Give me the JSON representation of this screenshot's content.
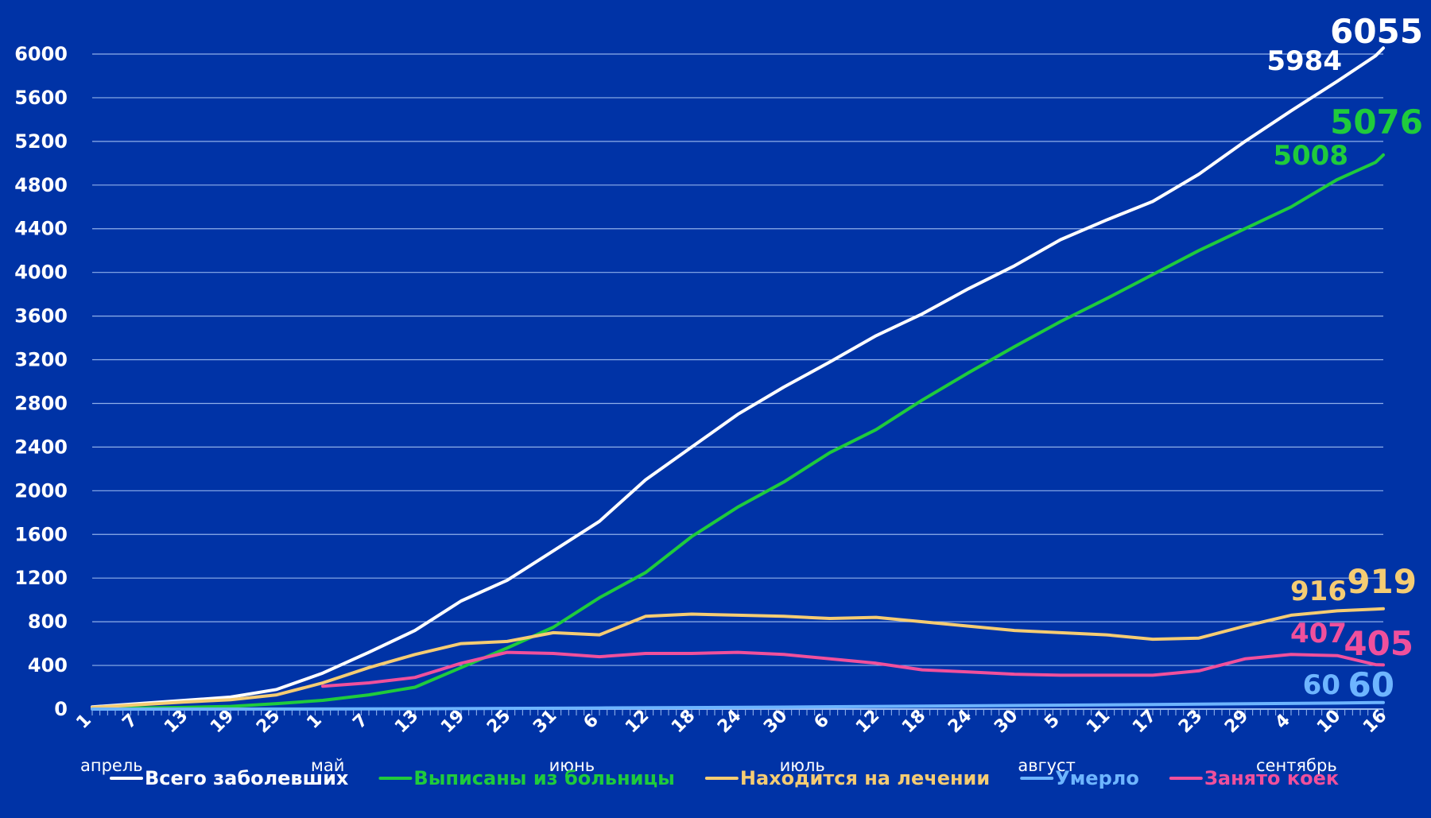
{
  "chart_data": {
    "type": "line",
    "title": "",
    "xlabel": "",
    "ylabel": "",
    "ylim": [
      0,
      6000
    ],
    "yticks": [
      0,
      400,
      800,
      1200,
      1600,
      2000,
      2400,
      2800,
      3200,
      3600,
      4000,
      4400,
      4800,
      5200,
      5600,
      6000
    ],
    "grid": true,
    "legend_position": "bottom",
    "x_range": [
      "2020-04-01",
      "2020-09-16"
    ],
    "x_tick_labels": [
      {
        "date": "2020-04-01",
        "label": "1"
      },
      {
        "date": "2020-04-07",
        "label": "7"
      },
      {
        "date": "2020-04-13",
        "label": "13"
      },
      {
        "date": "2020-04-19",
        "label": "19"
      },
      {
        "date": "2020-04-25",
        "label": "25"
      },
      {
        "date": "2020-05-01",
        "label": "1"
      },
      {
        "date": "2020-05-07",
        "label": "7"
      },
      {
        "date": "2020-05-13",
        "label": "13"
      },
      {
        "date": "2020-05-19",
        "label": "19"
      },
      {
        "date": "2020-05-25",
        "label": "25"
      },
      {
        "date": "2020-05-31",
        "label": "31"
      },
      {
        "date": "2020-06-06",
        "label": "6"
      },
      {
        "date": "2020-06-12",
        "label": "12"
      },
      {
        "date": "2020-06-18",
        "label": "18"
      },
      {
        "date": "2020-06-24",
        "label": "24"
      },
      {
        "date": "2020-06-30",
        "label": "30"
      },
      {
        "date": "2020-07-06",
        "label": "6"
      },
      {
        "date": "2020-07-12",
        "label": "12"
      },
      {
        "date": "2020-07-18",
        "label": "18"
      },
      {
        "date": "2020-07-24",
        "label": "24"
      },
      {
        "date": "2020-07-30",
        "label": "30"
      },
      {
        "date": "2020-08-05",
        "label": "5"
      },
      {
        "date": "2020-08-11",
        "label": "11"
      },
      {
        "date": "2020-08-17",
        "label": "17"
      },
      {
        "date": "2020-08-23",
        "label": "23"
      },
      {
        "date": "2020-08-29",
        "label": "29"
      },
      {
        "date": "2020-09-04",
        "label": "4"
      },
      {
        "date": "2020-09-10",
        "label": "10"
      },
      {
        "date": "2020-09-16",
        "label": "16"
      }
    ],
    "month_labels": [
      {
        "date": "2020-04-01",
        "label": "апрель"
      },
      {
        "date": "2020-05-01",
        "label": "май"
      },
      {
        "date": "2020-06-01",
        "label": "июнь"
      },
      {
        "date": "2020-07-01",
        "label": "июль"
      },
      {
        "date": "2020-08-01",
        "label": "август"
      },
      {
        "date": "2020-09-01",
        "label": "сентябрь"
      }
    ],
    "series": [
      {
        "name": "Всего заболевших",
        "color": "#ffffff",
        "points": [
          [
            "2020-04-01",
            20
          ],
          [
            "2020-04-07",
            50
          ],
          [
            "2020-04-13",
            80
          ],
          [
            "2020-04-19",
            110
          ],
          [
            "2020-04-25",
            180
          ],
          [
            "2020-05-01",
            330
          ],
          [
            "2020-05-07",
            520
          ],
          [
            "2020-05-13",
            720
          ],
          [
            "2020-05-19",
            990
          ],
          [
            "2020-05-25",
            1180
          ],
          [
            "2020-05-31",
            1450
          ],
          [
            "2020-06-06",
            1720
          ],
          [
            "2020-06-12",
            2100
          ],
          [
            "2020-06-18",
            2400
          ],
          [
            "2020-06-24",
            2700
          ],
          [
            "2020-06-30",
            2950
          ],
          [
            "2020-07-06",
            3180
          ],
          [
            "2020-07-12",
            3420
          ],
          [
            "2020-07-18",
            3620
          ],
          [
            "2020-07-24",
            3850
          ],
          [
            "2020-07-30",
            4060
          ],
          [
            "2020-08-05",
            4300
          ],
          [
            "2020-08-11",
            4480
          ],
          [
            "2020-08-17",
            4650
          ],
          [
            "2020-08-23",
            4900
          ],
          [
            "2020-08-29",
            5200
          ],
          [
            "2020-09-04",
            5480
          ],
          [
            "2020-09-10",
            5750
          ],
          [
            "2020-09-15",
            5984
          ],
          [
            "2020-09-16",
            6055
          ]
        ]
      },
      {
        "name": "Выписаны из больницы",
        "color": "#1fcb3c",
        "points": [
          [
            "2020-04-01",
            5
          ],
          [
            "2020-04-07",
            10
          ],
          [
            "2020-04-13",
            15
          ],
          [
            "2020-04-19",
            25
          ],
          [
            "2020-04-25",
            50
          ],
          [
            "2020-05-01",
            80
          ],
          [
            "2020-05-07",
            130
          ],
          [
            "2020-05-13",
            200
          ],
          [
            "2020-05-19",
            380
          ],
          [
            "2020-05-25",
            560
          ],
          [
            "2020-05-31",
            750
          ],
          [
            "2020-06-06",
            1020
          ],
          [
            "2020-06-12",
            1250
          ],
          [
            "2020-06-18",
            1580
          ],
          [
            "2020-06-24",
            1850
          ],
          [
            "2020-06-30",
            2080
          ],
          [
            "2020-07-06",
            2350
          ],
          [
            "2020-07-12",
            2560
          ],
          [
            "2020-07-18",
            2830
          ],
          [
            "2020-07-24",
            3080
          ],
          [
            "2020-07-30",
            3320
          ],
          [
            "2020-08-05",
            3550
          ],
          [
            "2020-08-11",
            3760
          ],
          [
            "2020-08-17",
            3980
          ],
          [
            "2020-08-23",
            4200
          ],
          [
            "2020-08-29",
            4400
          ],
          [
            "2020-09-04",
            4600
          ],
          [
            "2020-09-10",
            4850
          ],
          [
            "2020-09-15",
            5008
          ],
          [
            "2020-09-16",
            5076
          ]
        ]
      },
      {
        "name": "Находится на лечении",
        "color": "#f5cc73",
        "points": [
          [
            "2020-04-01",
            15
          ],
          [
            "2020-04-07",
            40
          ],
          [
            "2020-04-13",
            65
          ],
          [
            "2020-04-19",
            85
          ],
          [
            "2020-04-25",
            130
          ],
          [
            "2020-05-01",
            240
          ],
          [
            "2020-05-07",
            380
          ],
          [
            "2020-05-13",
            500
          ],
          [
            "2020-05-19",
            600
          ],
          [
            "2020-05-25",
            620
          ],
          [
            "2020-05-31",
            700
          ],
          [
            "2020-06-06",
            680
          ],
          [
            "2020-06-12",
            850
          ],
          [
            "2020-06-18",
            870
          ],
          [
            "2020-06-24",
            860
          ],
          [
            "2020-06-30",
            850
          ],
          [
            "2020-07-06",
            830
          ],
          [
            "2020-07-12",
            840
          ],
          [
            "2020-07-18",
            800
          ],
          [
            "2020-07-24",
            760
          ],
          [
            "2020-07-30",
            720
          ],
          [
            "2020-08-05",
            700
          ],
          [
            "2020-08-11",
            680
          ],
          [
            "2020-08-17",
            640
          ],
          [
            "2020-08-23",
            650
          ],
          [
            "2020-08-29",
            760
          ],
          [
            "2020-09-04",
            860
          ],
          [
            "2020-09-10",
            900
          ],
          [
            "2020-09-15",
            916
          ],
          [
            "2020-09-16",
            919
          ]
        ]
      },
      {
        "name": "Умерло",
        "color": "#6eb5ff",
        "points": [
          [
            "2020-04-01",
            0
          ],
          [
            "2020-04-25",
            1
          ],
          [
            "2020-05-13",
            3
          ],
          [
            "2020-06-06",
            10
          ],
          [
            "2020-06-30",
            18
          ],
          [
            "2020-07-24",
            30
          ],
          [
            "2020-08-17",
            42
          ],
          [
            "2020-09-10",
            55
          ],
          [
            "2020-09-15",
            60
          ],
          [
            "2020-09-16",
            60
          ]
        ]
      },
      {
        "name": "Занято коек",
        "color": "#f0509c",
        "points": [
          [
            "2020-05-01",
            210
          ],
          [
            "2020-05-07",
            240
          ],
          [
            "2020-05-13",
            290
          ],
          [
            "2020-05-19",
            420
          ],
          [
            "2020-05-25",
            520
          ],
          [
            "2020-05-31",
            510
          ],
          [
            "2020-06-06",
            480
          ],
          [
            "2020-06-12",
            510
          ],
          [
            "2020-06-18",
            510
          ],
          [
            "2020-06-24",
            520
          ],
          [
            "2020-06-30",
            500
          ],
          [
            "2020-07-06",
            460
          ],
          [
            "2020-07-12",
            420
          ],
          [
            "2020-07-18",
            360
          ],
          [
            "2020-07-24",
            340
          ],
          [
            "2020-07-30",
            320
          ],
          [
            "2020-08-05",
            310
          ],
          [
            "2020-08-11",
            310
          ],
          [
            "2020-08-17",
            310
          ],
          [
            "2020-08-23",
            350
          ],
          [
            "2020-08-29",
            460
          ],
          [
            "2020-09-04",
            500
          ],
          [
            "2020-09-10",
            490
          ],
          [
            "2020-09-15",
            407
          ],
          [
            "2020-09-16",
            405
          ]
        ]
      }
    ],
    "annotations": [
      {
        "series": "Всего заболевших",
        "date": "2020-09-15",
        "value": 5984,
        "label": "5984",
        "color": "#ffffff",
        "size": "small"
      },
      {
        "series": "Всего заболевших",
        "date": "2020-09-16",
        "value": 6055,
        "label": "6055",
        "color": "#ffffff",
        "size": "big"
      },
      {
        "series": "Выписаны из больницы",
        "date": "2020-09-15",
        "value": 5008,
        "label": "5008",
        "color": "#1fcb3c",
        "size": "small"
      },
      {
        "series": "Выписаны из больницы",
        "date": "2020-09-16",
        "value": 5076,
        "label": "5076",
        "color": "#1fcb3c",
        "size": "big"
      },
      {
        "series": "Находится на лечении",
        "date": "2020-09-15",
        "value": 916,
        "label": "916",
        "color": "#f5cc73",
        "size": "small"
      },
      {
        "series": "Находится на лечении",
        "date": "2020-09-16",
        "value": 919,
        "label": "919",
        "color": "#f5cc73",
        "size": "big"
      },
      {
        "series": "Занято коек",
        "date": "2020-09-15",
        "value": 407,
        "label": "407",
        "color": "#f0509c",
        "size": "small"
      },
      {
        "series": "Занято коек",
        "date": "2020-09-16",
        "value": 405,
        "label": "405",
        "color": "#f0509c",
        "size": "big"
      },
      {
        "series": "Умерло",
        "date": "2020-09-15",
        "value": 60,
        "label": "60",
        "color": "#6eb5ff",
        "size": "small"
      },
      {
        "series": "Умерло",
        "date": "2020-09-16",
        "value": 60,
        "label": "60",
        "color": "#6eb5ff",
        "size": "big"
      }
    ]
  },
  "colors": {
    "background": "#0033a6",
    "gridline": "#8fb0ea",
    "text": "#ffffff"
  }
}
